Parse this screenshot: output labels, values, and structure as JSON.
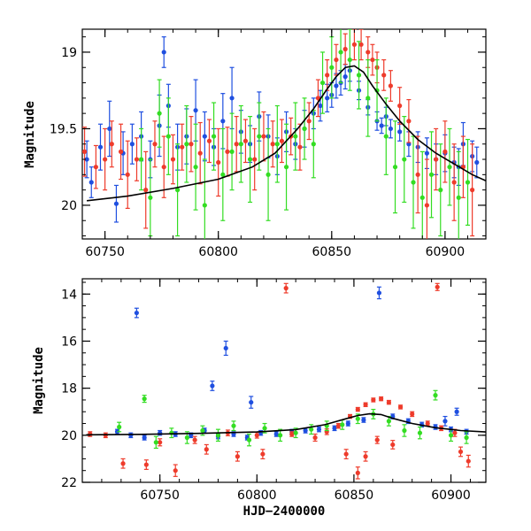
{
  "chart_data": [
    {
      "type": "scatter",
      "panel": "top",
      "title": "",
      "xlabel": "",
      "ylabel": "Magnitude",
      "xlim": [
        60740,
        60918
      ],
      "ylim": [
        20.22,
        18.85
      ],
      "y_inverted": true,
      "xticks": [
        60750,
        60800,
        60850,
        60900
      ],
      "yticks": [
        19,
        19.5,
        20
      ],
      "xtick_labels": [
        "60750",
        "60800",
        "60850",
        "60900"
      ],
      "ytick_labels": [
        "19",
        "19.5",
        "20"
      ],
      "grid": false,
      "legend": "none",
      "model_curve": {
        "color": "#000000",
        "x": [
          60742,
          60760,
          60780,
          60800,
          60815,
          60825,
          60835,
          60842,
          60848,
          60852,
          60856,
          60860,
          60864,
          60868,
          60874,
          60880,
          60888,
          60896,
          60904,
          60912,
          60918
        ],
        "y": [
          19.97,
          19.94,
          19.89,
          19.83,
          19.75,
          19.66,
          19.5,
          19.37,
          19.24,
          19.16,
          19.1,
          19.09,
          19.13,
          19.22,
          19.34,
          19.45,
          19.57,
          19.66,
          19.73,
          19.8,
          19.84
        ]
      },
      "series": [
        {
          "color": "#1f4fe0",
          "x": [
            60742,
            60744,
            60748,
            60752,
            60755,
            60758,
            60762,
            60766,
            60770,
            60774,
            60776,
            60778,
            60782,
            60786,
            60790,
            60794,
            60798,
            60802,
            60806,
            60810,
            60814,
            60818,
            60822,
            60826,
            60830,
            60834,
            60838,
            60842,
            60845,
            60848,
            60850,
            60852,
            60854,
            60856,
            60858,
            60862,
            60866,
            60870,
            60872,
            60874,
            60876,
            60880,
            60884,
            60888,
            60892,
            60896,
            60900,
            60904,
            60906,
            60908,
            60912,
            60914
          ],
          "y": [
            19.7,
            19.85,
            19.62,
            19.5,
            19.99,
            19.66,
            19.6,
            19.55,
            19.7,
            19.48,
            19.0,
            19.35,
            19.62,
            19.55,
            19.38,
            19.55,
            19.62,
            19.45,
            19.3,
            19.52,
            19.6,
            19.42,
            19.55,
            19.68,
            19.52,
            19.6,
            19.5,
            19.4,
            19.35,
            19.3,
            19.28,
            19.22,
            19.2,
            19.16,
            19.12,
            19.25,
            19.36,
            19.45,
            19.48,
            19.42,
            19.5,
            19.52,
            19.6,
            19.62,
            19.66,
            19.7,
            19.66,
            19.72,
            19.75,
            19.6,
            19.68,
            19.72
          ],
          "err": [
            0.12,
            0.1,
            0.15,
            0.18,
            0.12,
            0.14,
            0.13,
            0.16,
            0.12,
            0.2,
            0.1,
            0.14,
            0.15,
            0.18,
            0.2,
            0.16,
            0.12,
            0.18,
            0.2,
            0.14,
            0.12,
            0.16,
            0.14,
            0.12,
            0.13,
            0.1,
            0.12,
            0.1,
            0.1,
            0.09,
            0.08,
            0.08,
            0.08,
            0.08,
            0.07,
            0.06,
            0.05,
            0.06,
            0.05,
            0.06,
            0.06,
            0.06,
            0.08,
            0.1,
            0.1,
            0.1,
            0.12,
            0.1,
            0.12,
            0.14,
            0.1,
            0.1
          ]
        },
        {
          "color": "#ee3b2b",
          "x": [
            60741,
            60746,
            60750,
            60753,
            60757,
            60760,
            60764,
            60768,
            60772,
            60776,
            60780,
            60784,
            60788,
            60792,
            60796,
            60800,
            60804,
            60808,
            60812,
            60816,
            60820,
            60824,
            60828,
            60832,
            60836,
            60840,
            60844,
            60848,
            60852,
            60856,
            60860,
            60863,
            60866,
            60868,
            60870,
            60873,
            60876,
            60880,
            60884,
            60888,
            60892,
            60896,
            60900,
            60904,
            60908,
            60912
          ],
          "y": [
            19.65,
            19.75,
            19.7,
            19.6,
            19.65,
            19.8,
            19.7,
            19.9,
            19.6,
            19.75,
            19.7,
            19.62,
            19.6,
            19.66,
            19.58,
            19.72,
            19.65,
            19.6,
            19.58,
            19.7,
            19.55,
            19.6,
            19.58,
            19.55,
            19.62,
            19.45,
            19.3,
            19.15,
            19.05,
            18.98,
            18.95,
            18.95,
            19.0,
            19.05,
            19.1,
            19.15,
            19.22,
            19.35,
            19.45,
            19.8,
            20.0,
            19.7,
            19.65,
            19.85,
            19.75,
            19.9
          ],
          "err": [
            0.16,
            0.14,
            0.2,
            0.15,
            0.18,
            0.22,
            0.14,
            0.25,
            0.15,
            0.2,
            0.16,
            0.15,
            0.18,
            0.2,
            0.14,
            0.22,
            0.16,
            0.18,
            0.14,
            0.2,
            0.16,
            0.15,
            0.14,
            0.12,
            0.15,
            0.12,
            0.12,
            0.1,
            0.1,
            0.1,
            0.1,
            0.1,
            0.1,
            0.1,
            0.1,
            0.1,
            0.1,
            0.12,
            0.14,
            0.25,
            0.3,
            0.2,
            0.2,
            0.25,
            0.2,
            0.3
          ]
        },
        {
          "color": "#33dd22",
          "x": [
            60766,
            60770,
            60774,
            60778,
            60782,
            60786,
            60790,
            60794,
            60798,
            60802,
            60806,
            60810,
            60814,
            60818,
            60822,
            60826,
            60830,
            60834,
            60838,
            60842,
            60846,
            60850,
            60854,
            60858,
            60862,
            60866,
            60870,
            60874,
            60878,
            60882,
            60886,
            60890,
            60894,
            60898,
            60902,
            60906,
            60910
          ],
          "y": [
            19.7,
            19.95,
            19.4,
            19.55,
            19.9,
            19.6,
            19.75,
            20.0,
            19.55,
            19.8,
            19.65,
            19.6,
            19.7,
            19.55,
            19.8,
            19.6,
            19.75,
            19.55,
            19.5,
            19.6,
            19.2,
            19.1,
            19.0,
            19.05,
            19.15,
            19.3,
            19.25,
            19.55,
            19.75,
            19.7,
            19.85,
            19.95,
            19.8,
            19.9,
            19.75,
            19.95,
            19.85
          ],
          "err": [
            0.2,
            0.25,
            0.22,
            0.25,
            0.3,
            0.25,
            0.28,
            0.3,
            0.22,
            0.3,
            0.25,
            0.25,
            0.28,
            0.22,
            0.3,
            0.25,
            0.28,
            0.22,
            0.2,
            0.22,
            0.2,
            0.2,
            0.2,
            0.2,
            0.22,
            0.25,
            0.2,
            0.25,
            0.3,
            0.28,
            0.3,
            0.3,
            0.28,
            0.3,
            0.25,
            0.3,
            0.28
          ]
        }
      ]
    },
    {
      "type": "scatter",
      "panel": "bottom",
      "title": "",
      "xlabel": "HJD−2400000",
      "ylabel": "Magnitude",
      "xlim": [
        60710,
        60918
      ],
      "ylim": [
        22.0,
        13.35
      ],
      "y_inverted": true,
      "xticks": [
        60750,
        60800,
        60850,
        60900
      ],
      "yticks": [
        14,
        16,
        18,
        20,
        22
      ],
      "xtick_labels": [
        "60750",
        "60800",
        "60850",
        "60900"
      ],
      "ytick_labels": [
        "14",
        "16",
        "18",
        "20",
        "22"
      ],
      "grid": false,
      "legend": "none",
      "model_curve": {
        "color": "#000000",
        "x": [
          60712,
          60740,
          60770,
          60800,
          60820,
          60835,
          60845,
          60852,
          60858,
          60864,
          60870,
          60880,
          60892,
          60905,
          60918
        ],
        "y": [
          19.98,
          19.96,
          19.92,
          19.86,
          19.76,
          19.55,
          19.32,
          19.16,
          19.09,
          19.12,
          19.28,
          19.5,
          19.68,
          19.8,
          19.86
        ]
      },
      "series": [
        {
          "color": "#1f4fe0",
          "x": [
            60738,
            60777,
            60784,
            60797,
            60863,
            60897,
            60903,
            60728,
            60735,
            60742,
            60750,
            60758,
            60766,
            60773,
            60780,
            60788,
            60795,
            60802,
            60810,
            60818,
            60825,
            60832,
            60840,
            60847,
            60855,
            60870,
            60878,
            60885,
            60892,
            60900,
            60908
          ],
          "y": [
            14.8,
            17.9,
            16.3,
            18.6,
            13.95,
            19.4,
            19.0,
            19.85,
            20.0,
            20.1,
            19.9,
            19.95,
            20.0,
            19.8,
            20.05,
            19.95,
            20.1,
            19.9,
            19.95,
            19.85,
            19.8,
            19.75,
            19.7,
            19.5,
            19.35,
            19.2,
            19.4,
            19.55,
            19.65,
            19.75,
            19.85
          ],
          "err": [
            0.2,
            0.2,
            0.3,
            0.25,
            0.25,
            0.2,
            0.15,
            0.1,
            0.1,
            0.1,
            0.1,
            0.1,
            0.1,
            0.1,
            0.1,
            0.1,
            0.1,
            0.1,
            0.1,
            0.1,
            0.1,
            0.1,
            0.1,
            0.1,
            0.1,
            0.1,
            0.1,
            0.1,
            0.1,
            0.1,
            0.1
          ]
        },
        {
          "color": "#ee3b2b",
          "x": [
            60714,
            60731,
            60743,
            60758,
            60774,
            60790,
            60803,
            60815,
            60830,
            60842,
            60848,
            60852,
            60856,
            60860,
            60864,
            60868,
            60874,
            60880,
            60888,
            60895,
            60902,
            60905,
            60909,
            60722,
            60750,
            60768,
            60785,
            60800,
            60818,
            60836,
            60846,
            60852,
            60856,
            60862,
            60870,
            60893
          ],
          "y": [
            19.95,
            21.2,
            21.25,
            21.5,
            20.6,
            20.9,
            20.8,
            13.75,
            20.1,
            19.6,
            19.2,
            18.9,
            18.7,
            18.5,
            18.45,
            18.6,
            18.8,
            19.1,
            19.5,
            19.7,
            19.9,
            20.7,
            21.1,
            20.0,
            20.3,
            20.2,
            19.9,
            20.0,
            19.95,
            19.85,
            20.8,
            21.6,
            20.9,
            20.2,
            20.4,
            13.7
          ],
          "err": [
            0.1,
            0.2,
            0.2,
            0.25,
            0.2,
            0.2,
            0.2,
            0.2,
            0.15,
            0.1,
            0.08,
            0.08,
            0.08,
            0.08,
            0.08,
            0.08,
            0.08,
            0.1,
            0.1,
            0.1,
            0.15,
            0.2,
            0.25,
            0.1,
            0.15,
            0.15,
            0.12,
            0.12,
            0.1,
            0.12,
            0.2,
            0.25,
            0.2,
            0.15,
            0.18,
            0.15
          ]
        },
        {
          "color": "#33dd22",
          "x": [
            60729,
            60742,
            60748,
            60756,
            60764,
            60772,
            60780,
            60788,
            60796,
            60804,
            60812,
            60820,
            60828,
            60836,
            60844,
            60852,
            60860,
            60868,
            60876,
            60884,
            60892,
            60900,
            60908
          ],
          "y": [
            19.65,
            18.45,
            20.3,
            19.9,
            20.1,
            19.8,
            20.0,
            19.6,
            20.2,
            19.7,
            20.0,
            19.9,
            19.75,
            19.6,
            19.55,
            19.3,
            19.1,
            19.4,
            19.8,
            19.9,
            18.3,
            20.0,
            20.1
          ],
          "err": [
            0.2,
            0.15,
            0.25,
            0.2,
            0.25,
            0.2,
            0.25,
            0.2,
            0.25,
            0.2,
            0.25,
            0.2,
            0.2,
            0.2,
            0.2,
            0.2,
            0.2,
            0.2,
            0.25,
            0.25,
            0.2,
            0.25,
            0.25
          ]
        }
      ]
    }
  ]
}
